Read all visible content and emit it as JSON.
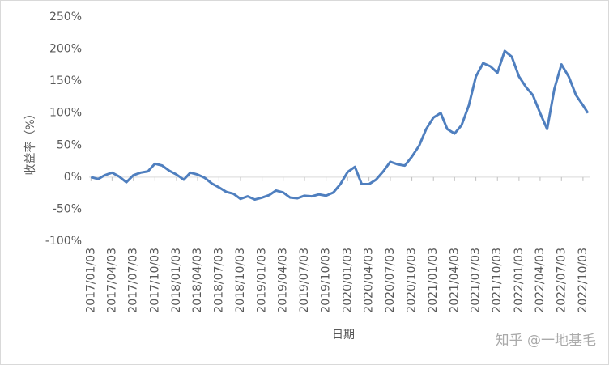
{
  "chart_data": {
    "type": "line",
    "y_label": "收益率（%）",
    "x_label": "日期",
    "watermark": "知乎 @一地基毛",
    "xlim": [
      "2016/12/26",
      "2022/10/31"
    ],
    "xticks": [
      "2017/01/03",
      "2017/04/03",
      "2017/07/03",
      "2017/10/03",
      "2018/01/03",
      "2018/04/03",
      "2018/07/03",
      "2018/10/03",
      "2019/01/03",
      "2019/04/03",
      "2019/07/03",
      "2019/10/03",
      "2020/01/03",
      "2020/04/03",
      "2020/07/03",
      "2020/10/03",
      "2021/01/03",
      "2021/04/03",
      "2021/07/03",
      "2021/10/03",
      "2022/01/03",
      "2022/04/03",
      "2022/07/03",
      "2022/10/03"
    ],
    "ylim": [
      -100,
      250
    ],
    "yticks": [
      {
        "value": -100,
        "label": "-100%"
      },
      {
        "value": -50,
        "label": "-50%"
      },
      {
        "value": 0,
        "label": "0%"
      },
      {
        "value": 50,
        "label": "50%"
      },
      {
        "value": 100,
        "label": "100%"
      },
      {
        "value": 150,
        "label": "150%"
      },
      {
        "value": 200,
        "label": "200%"
      },
      {
        "value": 250,
        "label": "250%"
      }
    ],
    "grid": false,
    "x": [
      "2017/01/03",
      "2017/02/03",
      "2017/03/03",
      "2017/04/03",
      "2017/05/03",
      "2017/06/03",
      "2017/07/03",
      "2017/08/03",
      "2017/09/03",
      "2017/10/03",
      "2017/11/03",
      "2017/12/03",
      "2018/01/03",
      "2018/02/03",
      "2018/03/03",
      "2018/04/03",
      "2018/05/03",
      "2018/06/03",
      "2018/07/03",
      "2018/08/03",
      "2018/09/03",
      "2018/10/03",
      "2018/11/03",
      "2018/12/03",
      "2019/01/03",
      "2019/02/03",
      "2019/03/03",
      "2019/04/03",
      "2019/05/03",
      "2019/06/03",
      "2019/07/03",
      "2019/08/03",
      "2019/09/03",
      "2019/10/03",
      "2019/11/03",
      "2019/12/03",
      "2020/01/03",
      "2020/02/03",
      "2020/03/03",
      "2020/04/03",
      "2020/05/03",
      "2020/06/03",
      "2020/07/03",
      "2020/08/03",
      "2020/09/03",
      "2020/10/03",
      "2020/11/03",
      "2020/12/03",
      "2021/01/03",
      "2021/02/03",
      "2021/03/03",
      "2021/04/03",
      "2021/05/03",
      "2021/06/03",
      "2021/07/03",
      "2021/08/03",
      "2021/09/03",
      "2021/10/03",
      "2021/11/03",
      "2021/12/03",
      "2022/01/03",
      "2022/02/03",
      "2022/03/03",
      "2022/04/03",
      "2022/05/03",
      "2022/06/03",
      "2022/07/03",
      "2022/08/03",
      "2022/09/03",
      "2022/10/03",
      "2022/10/24"
    ],
    "series": [
      {
        "name": "收益率",
        "color": "#4f7fbf",
        "values": [
          0,
          -3,
          3,
          7,
          1,
          -8,
          3,
          7,
          9,
          21,
          18,
          10,
          4,
          -4,
          7,
          4,
          -1,
          -10,
          -16,
          -23,
          -26,
          -34,
          -30,
          -35,
          -32,
          -28,
          -21,
          -24,
          -32,
          -33,
          -29,
          -30,
          -27,
          -29,
          -24,
          -11,
          8,
          16,
          -11,
          -11,
          -4,
          9,
          24,
          20,
          18,
          32,
          49,
          75,
          93,
          100,
          75,
          68,
          81,
          112,
          157,
          178,
          173,
          163,
          197,
          188,
          157,
          140,
          128,
          100,
          75,
          138,
          176,
          157,
          128,
          112,
          100
        ]
      }
    ]
  }
}
